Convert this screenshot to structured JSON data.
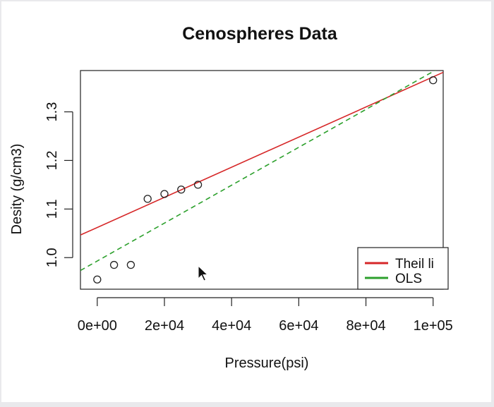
{
  "chart_data": {
    "type": "scatter",
    "title": "Cenospheres Data",
    "xlabel": "Pressure(psi)",
    "ylabel": "Desity (g/cm3)",
    "xlim": [
      -5000,
      103000
    ],
    "ylim": [
      0.935,
      1.385
    ],
    "x_ticks": [
      0,
      20000,
      40000,
      60000,
      80000,
      100000
    ],
    "x_tick_labels": [
      "0e+00",
      "2e+04",
      "4e+04",
      "6e+04",
      "8e+04",
      "1e+05"
    ],
    "y_ticks": [
      1.0,
      1.1,
      1.2,
      1.3
    ],
    "y_tick_labels": [
      "1.0",
      "1.1",
      "1.2",
      "1.3"
    ],
    "points": [
      {
        "x": 0,
        "y": 0.955
      },
      {
        "x": 5000,
        "y": 0.985
      },
      {
        "x": 10000,
        "y": 0.985
      },
      {
        "x": 15000,
        "y": 1.121
      },
      {
        "x": 20000,
        "y": 1.131
      },
      {
        "x": 25000,
        "y": 1.14
      },
      {
        "x": 30000,
        "y": 1.15
      },
      {
        "x": 100000,
        "y": 1.365
      }
    ],
    "series": [
      {
        "name": "Theil li",
        "color": "#d62728",
        "intercept": 1.062,
        "slope": 3.1e-06,
        "style": "solid"
      },
      {
        "name": "OLS",
        "color": "#2ca02c",
        "intercept": 0.993,
        "slope": 3.9e-06,
        "style": "dashed"
      }
    ],
    "legend": "bottom-right",
    "grid": false
  }
}
